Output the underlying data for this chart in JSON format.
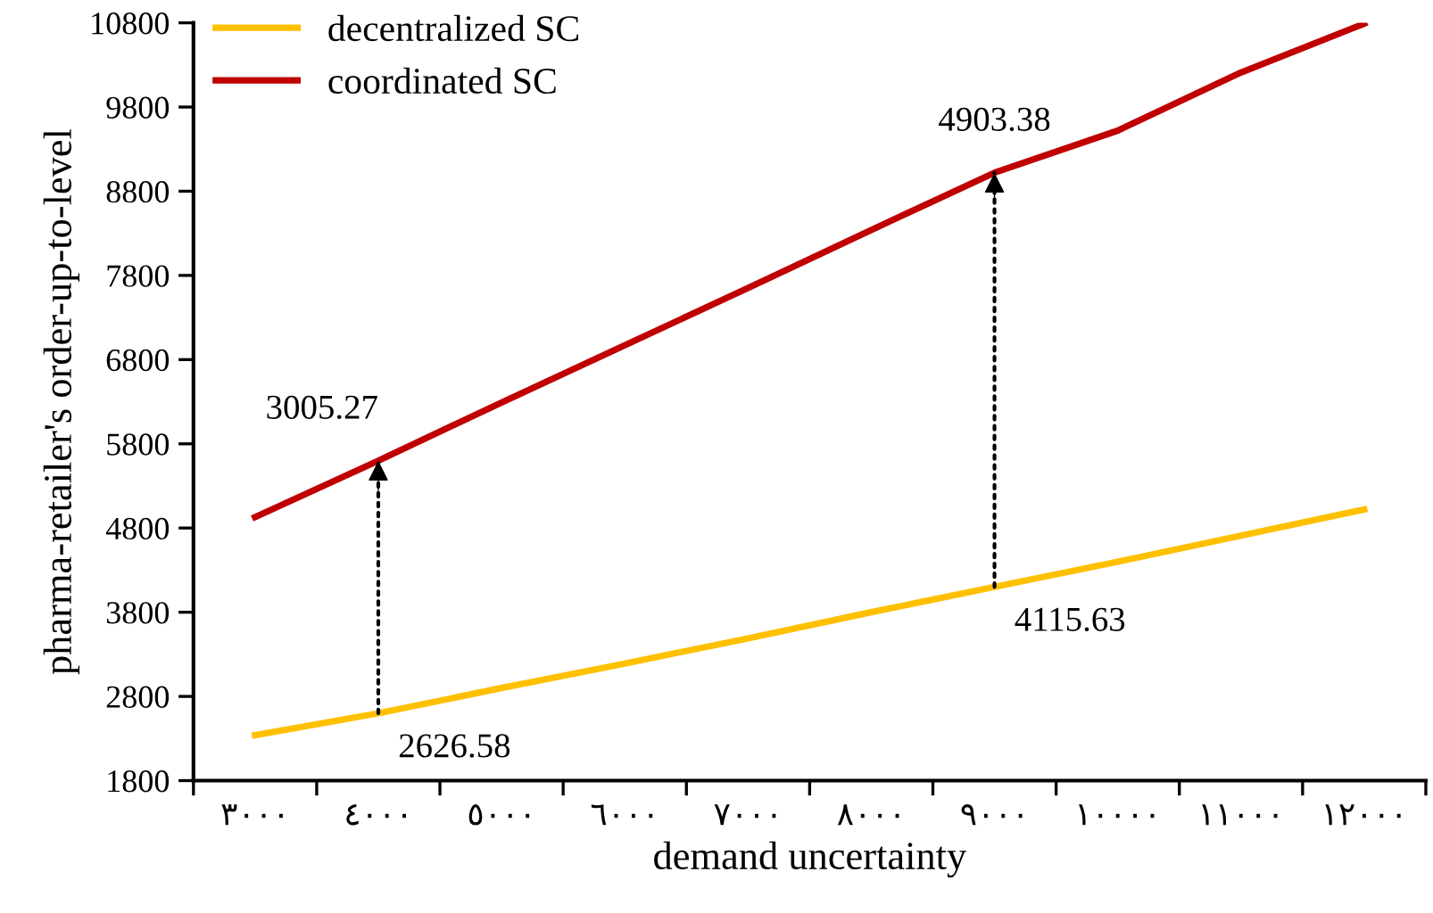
{
  "chart_data": {
    "type": "line",
    "xlabel": "demand uncertainty",
    "ylabel": "pharma-retailer's order-up-to-level",
    "categories": [
      "٣٠٠٠",
      "٤٠٠٠",
      "٥٠٠٠",
      "٦٠٠٠",
      "٧٠٠٠",
      "٨٠٠٠",
      "٩٠٠٠",
      "١٠٠٠٠",
      "١١٠٠٠",
      "١٢٠٠٠"
    ],
    "series": [
      {
        "name": "decentralized SC",
        "color": "#ffc000",
        "values": [
          2340,
          2600,
          2900,
          3190,
          3490,
          3800,
          4100,
          4400,
          4710,
          5020
        ]
      },
      {
        "name": "coordinated SC",
        "color": "#c00000",
        "values": [
          4930,
          5600,
          6290,
          6970,
          7650,
          8340,
          9020,
          9520,
          10210,
          10790
        ]
      }
    ],
    "ylim": [
      1800,
      10800
    ],
    "yticks": [
      1800,
      2800,
      3800,
      4800,
      5800,
      6800,
      7800,
      8800,
      9800,
      10800
    ],
    "annotations": [
      {
        "text": "2626.58",
        "x": "٤٠٠٠",
        "y": 2600
      },
      {
        "text": "3005.27",
        "x": "٤٠٠٠",
        "y": 5600
      },
      {
        "text": "4115.63",
        "x": "٩٠٠٠",
        "y": 4100
      },
      {
        "text": "4903.38",
        "x": "٩٠٠٠",
        "y": 9020
      }
    ],
    "legend": "top left",
    "grid": false,
    "marker": "none",
    "line_style": "solid"
  }
}
